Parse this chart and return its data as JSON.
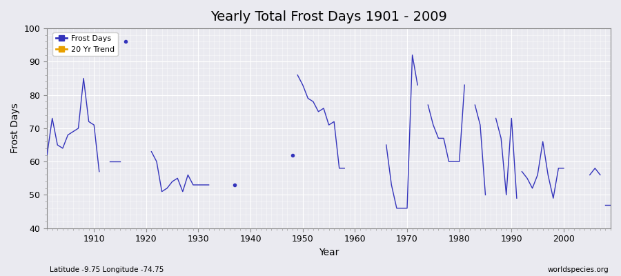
{
  "title": "Yearly Total Frost Days 1901 - 2009",
  "xlabel": "Year",
  "ylabel": "Frost Days",
  "xlim": [
    1901,
    2009
  ],
  "ylim": [
    40,
    100
  ],
  "yticks": [
    40,
    50,
    60,
    70,
    80,
    90,
    100
  ],
  "xticks": [
    1910,
    1920,
    1930,
    1940,
    1950,
    1960,
    1970,
    1980,
    1990,
    2000
  ],
  "bg_color": "#eaeaf0",
  "line_color": "#3333bb",
  "legend_items": [
    "Frost Days",
    "20 Yr Trend"
  ],
  "legend_colors": [
    "#3333bb",
    "#e8a000"
  ],
  "subtitle_left": "Latitude -9.75 Longitude -74.75",
  "subtitle_right": "worldspecies.org",
  "segments": [
    {
      "years": [
        1901,
        1902,
        1903,
        1904,
        1905,
        1906,
        1907,
        1908,
        1909,
        1910,
        1911
      ],
      "values": [
        62,
        73,
        65,
        64,
        68,
        69,
        70,
        85,
        72,
        71,
        57
      ]
    },
    {
      "years": [
        1913,
        1914,
        1915
      ],
      "values": [
        60,
        60,
        60
      ]
    },
    {
      "years": [
        1916
      ],
      "values": [
        96
      ]
    },
    {
      "years": [
        1921,
        1922,
        1923,
        1924,
        1925,
        1926,
        1927,
        1928,
        1929,
        1930,
        1931,
        1932
      ],
      "values": [
        63,
        60,
        51,
        52,
        54,
        55,
        51,
        56,
        53,
        53,
        53,
        53
      ]
    },
    {
      "years": [
        1937
      ],
      "values": [
        53
      ]
    },
    {
      "years": [
        1948
      ],
      "values": [
        62
      ]
    },
    {
      "years": [
        1949,
        1950,
        1951,
        1952,
        1953,
        1954,
        1955,
        1956,
        1957,
        1958
      ],
      "values": [
        86,
        83,
        79,
        78,
        75,
        76,
        71,
        72,
        58,
        58
      ]
    },
    {
      "years": [
        1966,
        1967,
        1968,
        1969,
        1970,
        1971,
        1972
      ],
      "values": [
        65,
        53,
        46,
        46,
        46,
        92,
        83
      ]
    },
    {
      "years": [
        1974,
        1975,
        1976,
        1977,
        1978,
        1979,
        1980,
        1981
      ],
      "values": [
        77,
        71,
        67,
        67,
        60,
        60,
        60,
        83
      ]
    },
    {
      "years": [
        1983,
        1984,
        1985
      ],
      "values": [
        77,
        71,
        50
      ]
    },
    {
      "years": [
        1987,
        1988,
        1989,
        1990,
        1991
      ],
      "values": [
        73,
        67,
        50,
        73,
        49
      ]
    },
    {
      "years": [
        1992,
        1993,
        1994,
        1995,
        1996,
        1997,
        1998,
        1999,
        2000
      ],
      "values": [
        57,
        55,
        52,
        56,
        66,
        56,
        49,
        58,
        58
      ]
    },
    {
      "years": [
        2005,
        2006,
        2007
      ],
      "values": [
        56,
        58,
        56
      ]
    },
    {
      "years": [
        2008,
        2009
      ],
      "values": [
        47,
        47
      ]
    }
  ]
}
